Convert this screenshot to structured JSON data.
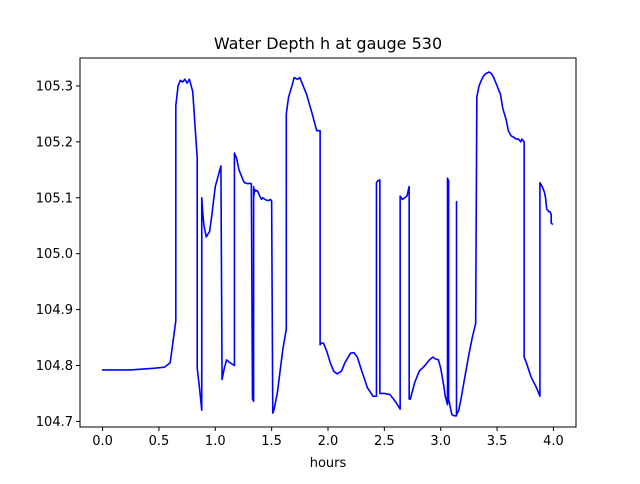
{
  "chart_data": {
    "type": "line",
    "title": "Water Depth h at gauge 530",
    "xlabel": "hours",
    "ylabel": "",
    "xlim": [
      -0.2,
      4.2
    ],
    "ylim": [
      104.69,
      105.35
    ],
    "xticks": [
      0.0,
      0.5,
      1.0,
      1.5,
      2.0,
      2.5,
      3.0,
      3.5,
      4.0
    ],
    "xtick_labels": [
      "0.0",
      "0.5",
      "1.0",
      "1.5",
      "2.0",
      "2.5",
      "3.0",
      "3.5",
      "4.0"
    ],
    "yticks": [
      104.7,
      104.8,
      104.9,
      105.0,
      105.1,
      105.2,
      105.3
    ],
    "ytick_labels": [
      "104.7",
      "104.8",
      "104.9",
      "105.0",
      "105.1",
      "105.2",
      "105.3"
    ],
    "grid": false,
    "series": [
      {
        "color": "#0000ff",
        "x": [
          0.0,
          0.25,
          0.45,
          0.55,
          0.6,
          0.65,
          0.65,
          0.67,
          0.69,
          0.71,
          0.73,
          0.75,
          0.77,
          0.8,
          0.82,
          0.83,
          0.84,
          0.84,
          0.86,
          0.88,
          0.88,
          0.89,
          0.9,
          0.92,
          0.95,
          0.97,
          1.0,
          1.05,
          1.06,
          1.06,
          1.08,
          1.1,
          1.13,
          1.17,
          1.17,
          1.19,
          1.2,
          1.21,
          1.23,
          1.25,
          1.26,
          1.29,
          1.3,
          1.32,
          1.33,
          1.34,
          1.34,
          1.34,
          1.35,
          1.36,
          1.37,
          1.38,
          1.39,
          1.41,
          1.42,
          1.45,
          1.47,
          1.49,
          1.5,
          1.51,
          1.51,
          1.52,
          1.55,
          1.6,
          1.63,
          1.63,
          1.65,
          1.68,
          1.7,
          1.73,
          1.75,
          1.78,
          1.81,
          1.86,
          1.9,
          1.92,
          1.93,
          1.93,
          1.94,
          1.96,
          1.99,
          2.02,
          2.05,
          2.08,
          2.12,
          2.15,
          2.2,
          2.23,
          2.26,
          2.3,
          2.35,
          2.4,
          2.43,
          2.43,
          2.44,
          2.46,
          2.46,
          2.47,
          2.47,
          2.5,
          2.55,
          2.6,
          2.64,
          2.64,
          2.65,
          2.66,
          2.68,
          2.7,
          2.72,
          2.72,
          2.73,
          2.73,
          2.77,
          2.81,
          2.86,
          2.9,
          2.93,
          2.95,
          2.98,
          3.0,
          3.03,
          3.04,
          3.06,
          3.06,
          3.07,
          3.07,
          3.09,
          3.1,
          3.12,
          3.14,
          3.14,
          3.14,
          3.16,
          3.18,
          3.21,
          3.25,
          3.28,
          3.31,
          3.32,
          3.32,
          3.34,
          3.36,
          3.38,
          3.4,
          3.43,
          3.45,
          3.47,
          3.5,
          3.53,
          3.55,
          3.58,
          3.6,
          3.62,
          3.63,
          3.65,
          3.67,
          3.69,
          3.71,
          3.72,
          3.74,
          3.74,
          3.76,
          3.8,
          3.85,
          3.88,
          3.88,
          3.9,
          3.92,
          3.93,
          3.94,
          3.96,
          3.97,
          3.98,
          3.98,
          3.99
        ],
        "values": [
          104.792,
          104.792,
          104.795,
          104.797,
          104.805,
          104.88,
          105.265,
          105.3,
          105.31,
          105.307,
          105.312,
          105.305,
          105.312,
          105.29,
          105.23,
          105.2,
          105.17,
          104.795,
          104.76,
          104.72,
          105.1,
          105.07,
          105.05,
          105.03,
          105.04,
          105.07,
          105.12,
          105.157,
          104.78,
          104.775,
          104.795,
          104.81,
          104.805,
          104.8,
          105.18,
          105.17,
          105.16,
          105.15,
          105.14,
          105.13,
          105.127,
          105.125,
          105.126,
          105.125,
          104.74,
          104.736,
          105.12,
          105.1,
          105.115,
          105.112,
          105.113,
          105.11,
          105.105,
          105.097,
          105.1,
          105.096,
          105.095,
          105.097,
          105.094,
          104.715,
          104.715,
          104.72,
          104.75,
          104.83,
          104.865,
          105.25,
          105.28,
          105.3,
          105.315,
          105.312,
          105.315,
          105.3,
          105.285,
          105.25,
          105.22,
          105.22,
          105.22,
          104.837,
          104.84,
          104.84,
          104.825,
          104.805,
          104.79,
          104.785,
          104.79,
          104.805,
          104.822,
          104.823,
          104.815,
          104.79,
          104.76,
          104.745,
          104.745,
          105.127,
          105.13,
          105.132,
          104.75,
          104.75,
          104.75,
          104.75,
          104.748,
          104.735,
          104.722,
          105.103,
          105.1,
          105.097,
          105.1,
          105.103,
          105.12,
          104.74,
          104.74,
          104.74,
          104.77,
          104.79,
          104.8,
          104.81,
          104.815,
          104.812,
          104.81,
          104.795,
          104.76,
          104.745,
          104.73,
          105.135,
          105.13,
          104.74,
          104.72,
          104.712,
          104.71,
          104.71,
          105.093,
          104.712,
          104.72,
          104.74,
          104.775,
          104.82,
          104.85,
          104.875,
          105.265,
          105.28,
          105.3,
          105.31,
          105.318,
          105.322,
          105.325,
          105.322,
          105.315,
          105.3,
          105.285,
          105.26,
          105.24,
          105.22,
          105.212,
          105.21,
          105.208,
          105.205,
          105.205,
          105.2,
          105.205,
          105.2,
          104.815,
          104.805,
          104.78,
          104.76,
          104.745,
          105.127,
          105.12,
          105.11,
          105.1,
          105.08,
          105.075,
          105.075,
          105.07,
          105.055,
          105.053
        ]
      }
    ]
  }
}
